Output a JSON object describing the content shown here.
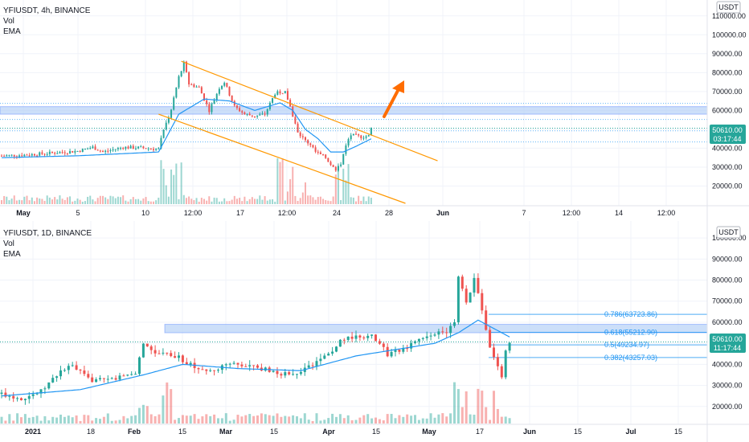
{
  "colors": {
    "up": "#26a69a",
    "down": "#ef5350",
    "ema": "#2196f3",
    "channel": "#ff9800",
    "zone": "#bbd4f7",
    "zone_border": "#2962ff",
    "fib": "#2196f3",
    "arrow": "#ff6d00",
    "price_label": "#26a69a"
  },
  "top_panel": {
    "legend": {
      "title": "YFIUSDT, 4h, BINANCE",
      "vol": "Vol",
      "ema": "EMA"
    },
    "currency": "USDT",
    "price_label": "50610.00",
    "countdown": "03:17:44",
    "y_ticks": [
      "110000.00",
      "100000.00",
      "90000.00",
      "80000.00",
      "70000.00",
      "60000.00",
      "50000.00",
      "40000.00",
      "30000.00",
      "20000.00"
    ],
    "x_ticks": [
      "May",
      "5",
      "10",
      "12:00",
      "17",
      "12:00",
      "24",
      "28",
      "Jun",
      "7",
      "12:00",
      "14",
      "12:00"
    ],
    "bold_x_ticks": [
      "May",
      "Jun"
    ]
  },
  "bottom_panel": {
    "legend": {
      "title": "YFIUSDT, 1D, BINANCE",
      "vol": "Vol",
      "ema": "EMA"
    },
    "currency": "USDT",
    "price_label": "50610.00",
    "countdown": "11:17:44",
    "y_ticks": [
      "100000.00",
      "90000.00",
      "80000.00",
      "70000.00",
      "60000.00",
      "50000.00",
      "40000.00",
      "30000.00",
      "20000.00"
    ],
    "x_ticks": [
      "2021",
      "18",
      "Feb",
      "15",
      "Mar",
      "15",
      "Apr",
      "15",
      "May",
      "17",
      "Jun",
      "15",
      "Jul",
      "15"
    ],
    "bold_x_ticks": [
      "2021",
      "Feb",
      "Mar",
      "Apr",
      "May",
      "Jun",
      "Jul"
    ],
    "fib_levels": [
      {
        "label": "0.786(63723.86)",
        "value": 63723.86
      },
      {
        "label": "0.618(55212.90)",
        "value": 55212.9
      },
      {
        "label": "0.5(49234.97)",
        "value": 49234.97
      },
      {
        "label": "0.382(43257.03)",
        "value": 43257.03
      }
    ]
  },
  "chart_data": [
    {
      "type": "candlestick",
      "title": "YFIUSDT, 4h, BINANCE",
      "ylabel": "USDT",
      "ylim": [
        10000,
        115000
      ],
      "last_price": 50610.0,
      "close_path": [
        [
          0,
          36000
        ],
        [
          10,
          36500
        ],
        [
          20,
          37500
        ],
        [
          30,
          38500
        ],
        [
          36,
          40500
        ],
        [
          40,
          38000
        ],
        [
          48,
          40500
        ],
        [
          55,
          40200
        ],
        [
          62,
          39500
        ],
        [
          64,
          50000
        ],
        [
          67,
          60000
        ],
        [
          70,
          78000
        ],
        [
          72,
          85000
        ],
        [
          74,
          74000
        ],
        [
          78,
          72000
        ],
        [
          82,
          60000
        ],
        [
          86,
          72000
        ],
        [
          88,
          75000
        ],
        [
          92,
          62000
        ],
        [
          96,
          58000
        ],
        [
          100,
          57000
        ],
        [
          104,
          58000
        ],
        [
          108,
          69000
        ],
        [
          112,
          70000
        ],
        [
          114,
          62000
        ],
        [
          117,
          48000
        ],
        [
          120,
          44000
        ],
        [
          122,
          42000
        ],
        [
          124,
          38000
        ],
        [
          128,
          35000
        ],
        [
          132,
          28000
        ],
        [
          134,
          32000
        ],
        [
          136,
          42000
        ],
        [
          138,
          47000
        ],
        [
          142,
          46000
        ],
        [
          145,
          46500
        ],
        [
          146,
          50600
        ]
      ],
      "ema_path": [
        [
          0,
          35000
        ],
        [
          30,
          36000
        ],
        [
          62,
          38000
        ],
        [
          70,
          58000
        ],
        [
          80,
          66000
        ],
        [
          90,
          65000
        ],
        [
          100,
          60000
        ],
        [
          110,
          64000
        ],
        [
          115,
          60000
        ],
        [
          120,
          50000
        ],
        [
          125,
          45000
        ],
        [
          130,
          38000
        ],
        [
          135,
          38000
        ],
        [
          140,
          41000
        ],
        [
          146,
          45000
        ]
      ],
      "horizontal_zone": [
        58000,
        62000
      ],
      "dotted_levels": [
        63700,
        55200,
        49200,
        43300
      ],
      "channel": {
        "upper": [
          [
            71,
            86000
          ],
          [
            150,
            44000
          ]
        ],
        "lower": [
          [
            62,
            58000
          ],
          [
            150,
            10000
          ]
        ]
      }
    },
    {
      "type": "candlestick",
      "title": "YFIUSDT, 1D, BINANCE",
      "ylabel": "USDT",
      "ylim": [
        10000,
        105000
      ],
      "last_price": 50610.0,
      "close_path": [
        [
          0,
          26000
        ],
        [
          5,
          24000
        ],
        [
          10,
          27000
        ],
        [
          15,
          37000
        ],
        [
          18,
          39000
        ],
        [
          22,
          33000
        ],
        [
          26,
          32000
        ],
        [
          30,
          34000
        ],
        [
          34,
          36000
        ],
        [
          36,
          50000
        ],
        [
          38,
          46000
        ],
        [
          42,
          46000
        ],
        [
          46,
          42000
        ],
        [
          50,
          38000
        ],
        [
          54,
          36000
        ],
        [
          58,
          41000
        ],
        [
          62,
          40000
        ],
        [
          66,
          38000
        ],
        [
          70,
          36000
        ],
        [
          74,
          35000
        ],
        [
          78,
          39000
        ],
        [
          82,
          43000
        ],
        [
          86,
          51000
        ],
        [
          90,
          54000
        ],
        [
          94,
          53000
        ],
        [
          98,
          45000
        ],
        [
          102,
          47000
        ],
        [
          106,
          51000
        ],
        [
          110,
          55000
        ],
        [
          113,
          56000
        ],
        [
          115,
          60000
        ],
        [
          116,
          82000
        ],
        [
          118,
          70000
        ],
        [
          120,
          80000
        ],
        [
          122,
          66000
        ],
        [
          124,
          48000
        ],
        [
          126,
          40000
        ],
        [
          127,
          33000
        ],
        [
          128,
          47000
        ],
        [
          129,
          50610
        ]
      ],
      "ema_path": [
        [
          0,
          25000
        ],
        [
          20,
          28000
        ],
        [
          36,
          35000
        ],
        [
          46,
          40000
        ],
        [
          60,
          38000
        ],
        [
          76,
          37000
        ],
        [
          90,
          44000
        ],
        [
          110,
          50000
        ],
        [
          116,
          55000
        ],
        [
          121,
          61000
        ],
        [
          126,
          56000
        ],
        [
          129,
          53000
        ]
      ],
      "horizontal_zone": [
        55000,
        59000
      ],
      "fib_levels": [
        63723.86,
        55212.9,
        49234.97,
        43257.03
      ]
    }
  ]
}
